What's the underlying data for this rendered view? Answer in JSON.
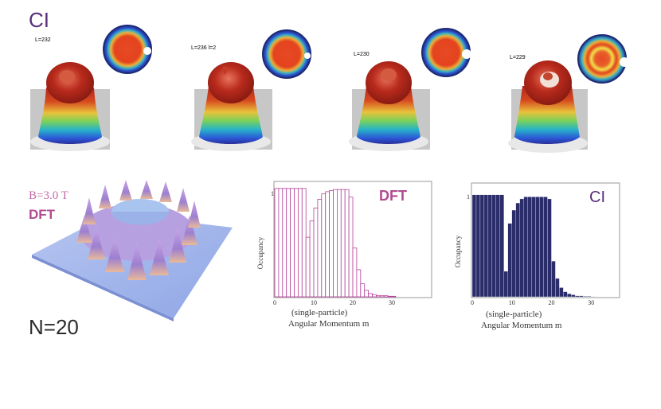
{
  "top_panel": {
    "title": "CI",
    "l_labels": [
      "L=232",
      "L=236 l=2",
      "L=230",
      "L=229"
    ]
  },
  "bottom_left": {
    "field_label": "B=3.0 T",
    "method_label": "DFT",
    "n_label": "N=20"
  },
  "colors": {
    "dft_bars": "#b5439a",
    "ci_bars": "#2a2d6a",
    "ci_title": "#5a2f7a",
    "dft_title": "#b04c91"
  },
  "chart_data": [
    {
      "type": "bar",
      "title": "DFT",
      "ylabel": "Occupancy",
      "xlabel_line1": "(single-particle)",
      "xlabel_line2": "Angular Momentum m",
      "x_ticks": [
        "0",
        "10",
        "20",
        "30"
      ],
      "y_ticks": [
        "1"
      ],
      "xlim": [
        0,
        40
      ],
      "ylim": [
        0,
        1.05
      ],
      "x": [
        0,
        1,
        2,
        3,
        4,
        5,
        6,
        7,
        8,
        9,
        10,
        11,
        12,
        13,
        14,
        15,
        16,
        17,
        18,
        19,
        20,
        21,
        22,
        23,
        24,
        25,
        26,
        27,
        28,
        29,
        30,
        31,
        32,
        33
      ],
      "values": [
        1,
        1,
        1,
        1,
        1,
        1,
        1,
        1,
        0.55,
        0.7,
        0.82,
        0.9,
        0.95,
        0.97,
        0.98,
        0.99,
        0.99,
        0.99,
        0.99,
        0.92,
        0.45,
        0.25,
        0.12,
        0.06,
        0.03,
        0.02,
        0.01,
        0.01,
        0.01,
        0.005,
        0.005,
        0,
        0,
        0
      ]
    },
    {
      "type": "bar",
      "title": "CI",
      "ylabel": "Occupancy",
      "xlabel_line1": "(single-particle)",
      "xlabel_line2": "Angular Momentum m",
      "x_ticks": [
        "0",
        "10",
        "20",
        "30"
      ],
      "y_ticks": [
        "1"
      ],
      "xlim": [
        0,
        37
      ],
      "ylim": [
        0,
        1.1
      ],
      "x": [
        0,
        1,
        2,
        3,
        4,
        5,
        6,
        7,
        8,
        9,
        10,
        11,
        12,
        13,
        14,
        15,
        16,
        17,
        18,
        19,
        20,
        21,
        22,
        23,
        24,
        25,
        26,
        27,
        28,
        29,
        30,
        31,
        32,
        33
      ],
      "values": [
        1,
        1,
        1,
        1,
        1,
        1,
        1,
        1,
        0.25,
        0.72,
        0.85,
        0.92,
        0.96,
        0.98,
        0.98,
        0.98,
        0.98,
        0.98,
        0.98,
        0.96,
        0.35,
        0.18,
        0.09,
        0.05,
        0.03,
        0.02,
        0.01,
        0.01,
        0.005,
        0.005,
        0.003,
        0,
        0,
        0
      ]
    }
  ]
}
